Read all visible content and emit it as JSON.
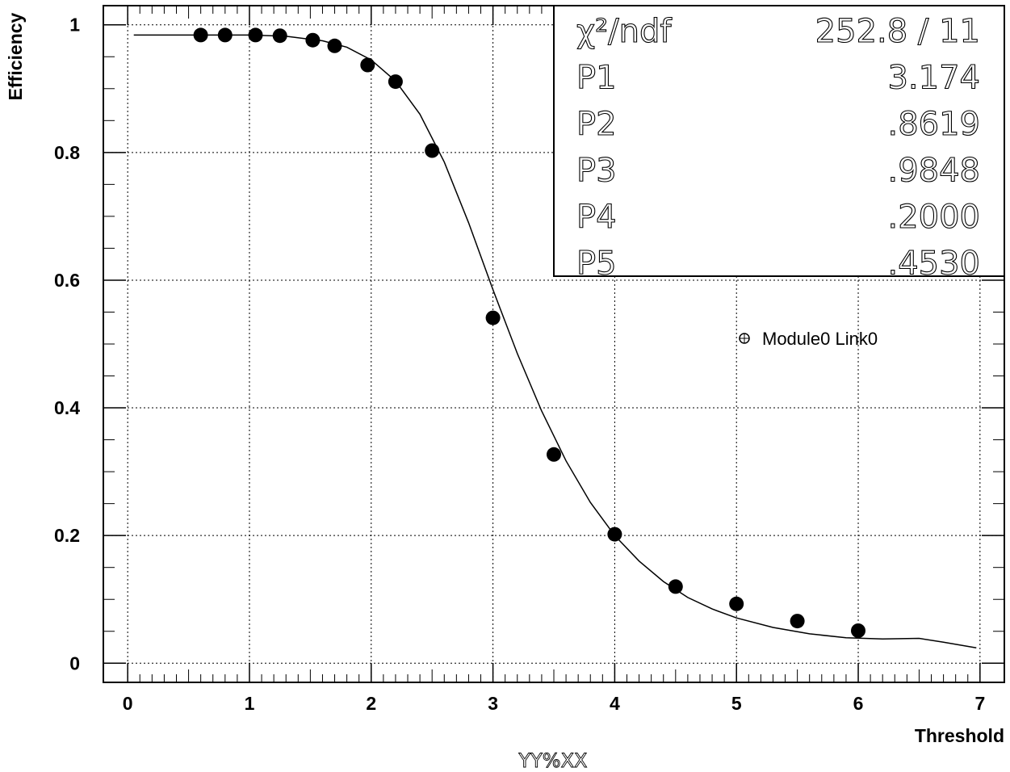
{
  "chart_data": {
    "type": "scatter",
    "xlabel": "Threshold",
    "ylabel": "Efficiency",
    "xlim": [
      -0.2,
      7.2
    ],
    "ylim": [
      -0.03,
      1.03
    ],
    "x_ticks": [
      "0",
      "1",
      "2",
      "3",
      "4",
      "5",
      "6",
      "7"
    ],
    "y_ticks": [
      "0",
      "0.2",
      "0.4",
      "0.6",
      "0.8",
      "1"
    ],
    "grid": true,
    "legend_position": "right-middle",
    "series": [
      {
        "name": "Module0 Link0",
        "x": [
          0.6,
          0.8,
          1.05,
          1.25,
          1.52,
          1.7,
          1.97,
          2.2,
          2.5,
          3.0,
          3.5,
          4.0,
          4.5,
          5.0,
          5.5,
          6.0
        ],
        "y": [
          0.984,
          0.984,
          0.984,
          0.983,
          0.976,
          0.967,
          0.937,
          0.911,
          0.803,
          0.541,
          0.327,
          0.202,
          0.12,
          0.093,
          0.066,
          0.051
        ]
      }
    ],
    "fit": {
      "x": [
        0.05,
        0.5,
        1.0,
        1.3,
        1.6,
        1.8,
        2.0,
        2.2,
        2.4,
        2.6,
        2.8,
        3.0,
        3.2,
        3.4,
        3.6,
        3.8,
        4.0,
        4.2,
        4.4,
        4.6,
        4.8,
        5.0,
        5.3,
        5.6,
        5.9,
        6.2,
        6.5,
        6.7,
        6.97
      ],
      "y": [
        0.984,
        0.984,
        0.984,
        0.982,
        0.975,
        0.965,
        0.945,
        0.912,
        0.86,
        0.785,
        0.69,
        0.585,
        0.485,
        0.395,
        0.317,
        0.252,
        0.2,
        0.16,
        0.128,
        0.103,
        0.085,
        0.071,
        0.056,
        0.046,
        0.04,
        0.038,
        0.039,
        0.033,
        0.024
      ]
    },
    "stats": [
      {
        "label": "χ²/ndf",
        "value": "252.8   /    11"
      },
      {
        "label": "P1",
        "value": "3.174"
      },
      {
        "label": "P2",
        "value": ".8619"
      },
      {
        "label": "P3",
        "value": ".9848"
      },
      {
        "label": "P4",
        "value": ".2000"
      },
      {
        "label": "P5",
        "value": ".4530"
      }
    ],
    "footer": "YY%XX"
  }
}
